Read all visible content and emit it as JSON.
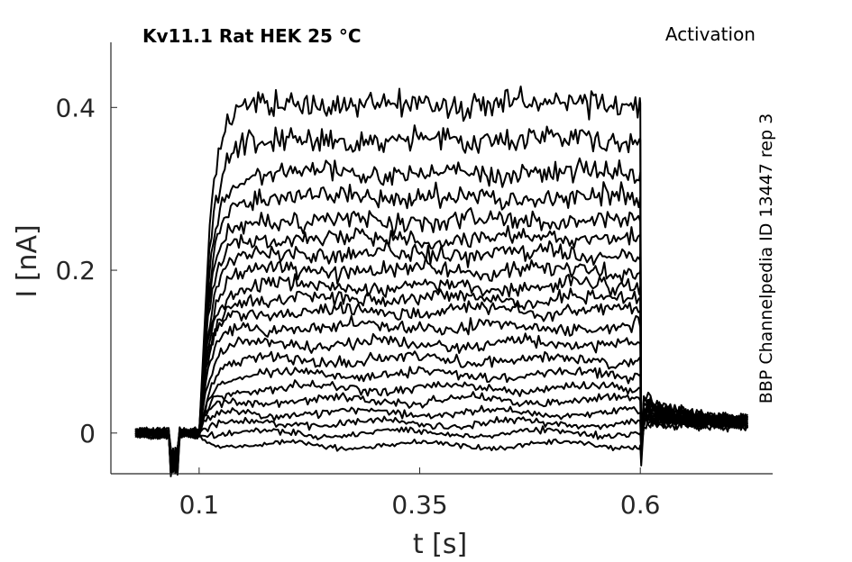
{
  "chart_data": {
    "type": "line",
    "title": "Kv11.1  Rat  HEK  25 °C",
    "subtitle": "Activation",
    "side_note": "BBP Channelpedia ID 13447 rep 3",
    "xlabel": "t [s]",
    "ylabel": "I [nA]",
    "xlim": [
      0.0,
      0.75
    ],
    "ylim": [
      -0.05,
      0.48
    ],
    "xticks": [
      0.1,
      0.35,
      0.6
    ],
    "xtick_labels": [
      "0.1",
      "0.35",
      "0.6"
    ],
    "yticks": [
      0,
      0.2,
      0.4
    ],
    "ytick_labels": [
      "0",
      "0.2",
      "0.4"
    ],
    "grid": false,
    "legend": "none",
    "line_color": "#000000",
    "pulse": {
      "t_start": 0.1,
      "t_end": 0.6,
      "t_first": 0.028,
      "t_last": 0.722,
      "artifact_t": 0.072
    },
    "series_steady_state_nA": [
      -0.015,
      0.0,
      0.012,
      0.025,
      0.04,
      0.055,
      0.072,
      0.09,
      0.11,
      0.13,
      0.15,
      0.165,
      0.18,
      0.2,
      0.22,
      0.24,
      0.26,
      0.29,
      0.32,
      0.36,
      0.405
    ]
  }
}
